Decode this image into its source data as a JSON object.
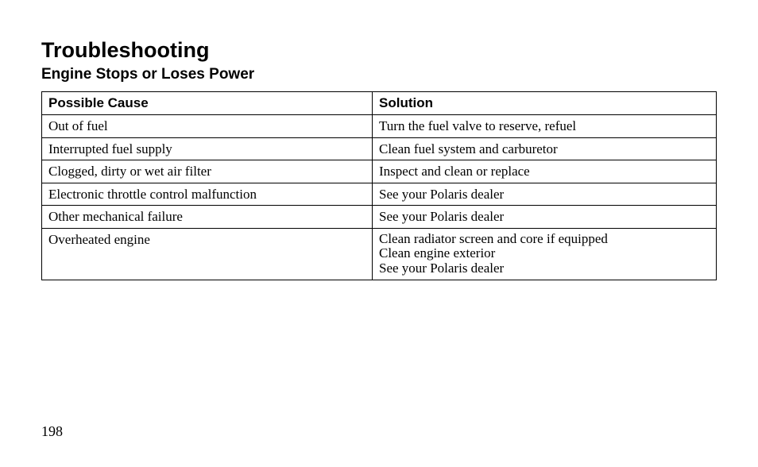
{
  "title": "Troubleshooting",
  "subtitle": "Engine Stops or Loses Power",
  "page_number": "198",
  "table": {
    "columns": [
      "Possible Cause",
      "Solution"
    ],
    "column_widths_pct": [
      49,
      51
    ],
    "header_font": {
      "family": "Arial",
      "weight": "bold",
      "size_pt": 17
    },
    "cell_font": {
      "family": "Times New Roman",
      "weight": "normal",
      "size_pt": 17
    },
    "border_color": "#000000",
    "background_color": "#ffffff",
    "rows": [
      {
        "cause": "Out of fuel",
        "solution": [
          "Turn the fuel valve to reserve, refuel"
        ]
      },
      {
        "cause": "Interrupted fuel supply",
        "solution": [
          "Clean fuel system and carburetor"
        ]
      },
      {
        "cause": "Clogged, dirty or wet air filter",
        "solution": [
          "Inspect and clean or replace"
        ]
      },
      {
        "cause": "Electronic throttle control malfunction",
        "solution": [
          "See your Polaris dealer"
        ]
      },
      {
        "cause": "Other mechanical failure",
        "solution": [
          "See your Polaris dealer"
        ]
      },
      {
        "cause": "Overheated engine",
        "solution": [
          "Clean radiator screen and core if equipped",
          "Clean engine exterior",
          "See your Polaris dealer"
        ]
      }
    ]
  },
  "styling": {
    "page_background": "#ffffff",
    "text_color": "#000000",
    "title_font": {
      "family": "Arial",
      "weight": "bold",
      "size_pt": 27
    },
    "subtitle_font": {
      "family": "Arial",
      "weight": "bold",
      "size_pt": 19
    },
    "page_number_font": {
      "family": "Times New Roman",
      "size_pt": 18
    }
  }
}
